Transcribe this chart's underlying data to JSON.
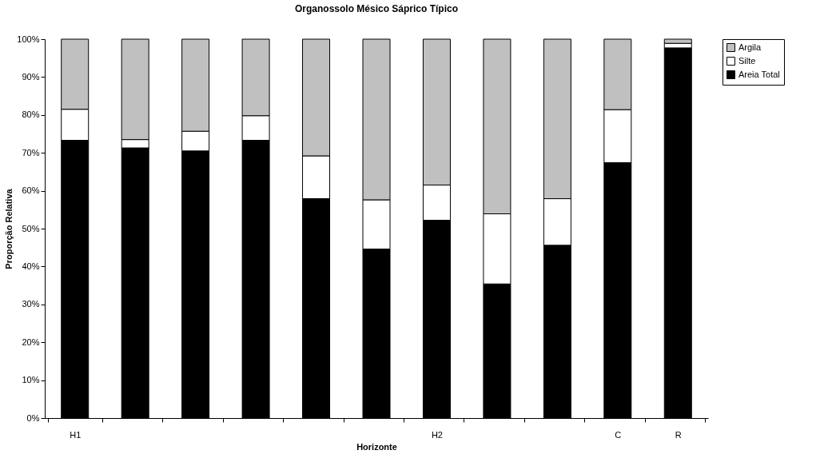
{
  "chart_data": {
    "type": "bar",
    "stacked": true,
    "title": "Organossolo Mésico Sáprico Típico",
    "xlabel": "Horizonte",
    "ylabel": "Proporção Relativa",
    "categories": [
      "H1",
      null,
      null,
      null,
      null,
      null,
      "H2",
      null,
      null,
      "C",
      "R"
    ],
    "series": [
      {
        "name": "Areia Total",
        "color": "#000000",
        "values": [
          73.3,
          71.3,
          70.5,
          73.3,
          57.9,
          44.6,
          52.2,
          35.4,
          45.6,
          67.4,
          97.7
        ]
      },
      {
        "name": "Silte",
        "color": "#ffffff",
        "values": [
          8.2,
          2.2,
          5.2,
          6.5,
          11.3,
          13.0,
          9.3,
          18.5,
          12.3,
          14.0,
          1.2
        ]
      },
      {
        "name": "Argila",
        "color": "#c0c0c0",
        "values": [
          18.5,
          26.5,
          24.3,
          20.2,
          30.8,
          42.4,
          38.5,
          46.1,
          42.1,
          18.6,
          1.1
        ]
      }
    ],
    "ylim": [
      0,
      100
    ],
    "yticks": [
      {
        "value": 0,
        "label": "0%"
      },
      {
        "value": 10,
        "label": "10%"
      },
      {
        "value": 20,
        "label": "20%"
      },
      {
        "value": 30,
        "label": "30%"
      },
      {
        "value": 40,
        "label": "40%"
      },
      {
        "value": 50,
        "label": "50%"
      },
      {
        "value": 60,
        "label": "60%"
      },
      {
        "value": 70,
        "label": "70%"
      },
      {
        "value": 80,
        "label": "80%"
      },
      {
        "value": 90,
        "label": "90%"
      },
      {
        "value": 100,
        "label": "100%"
      }
    ],
    "grid": false,
    "legend": "right"
  }
}
